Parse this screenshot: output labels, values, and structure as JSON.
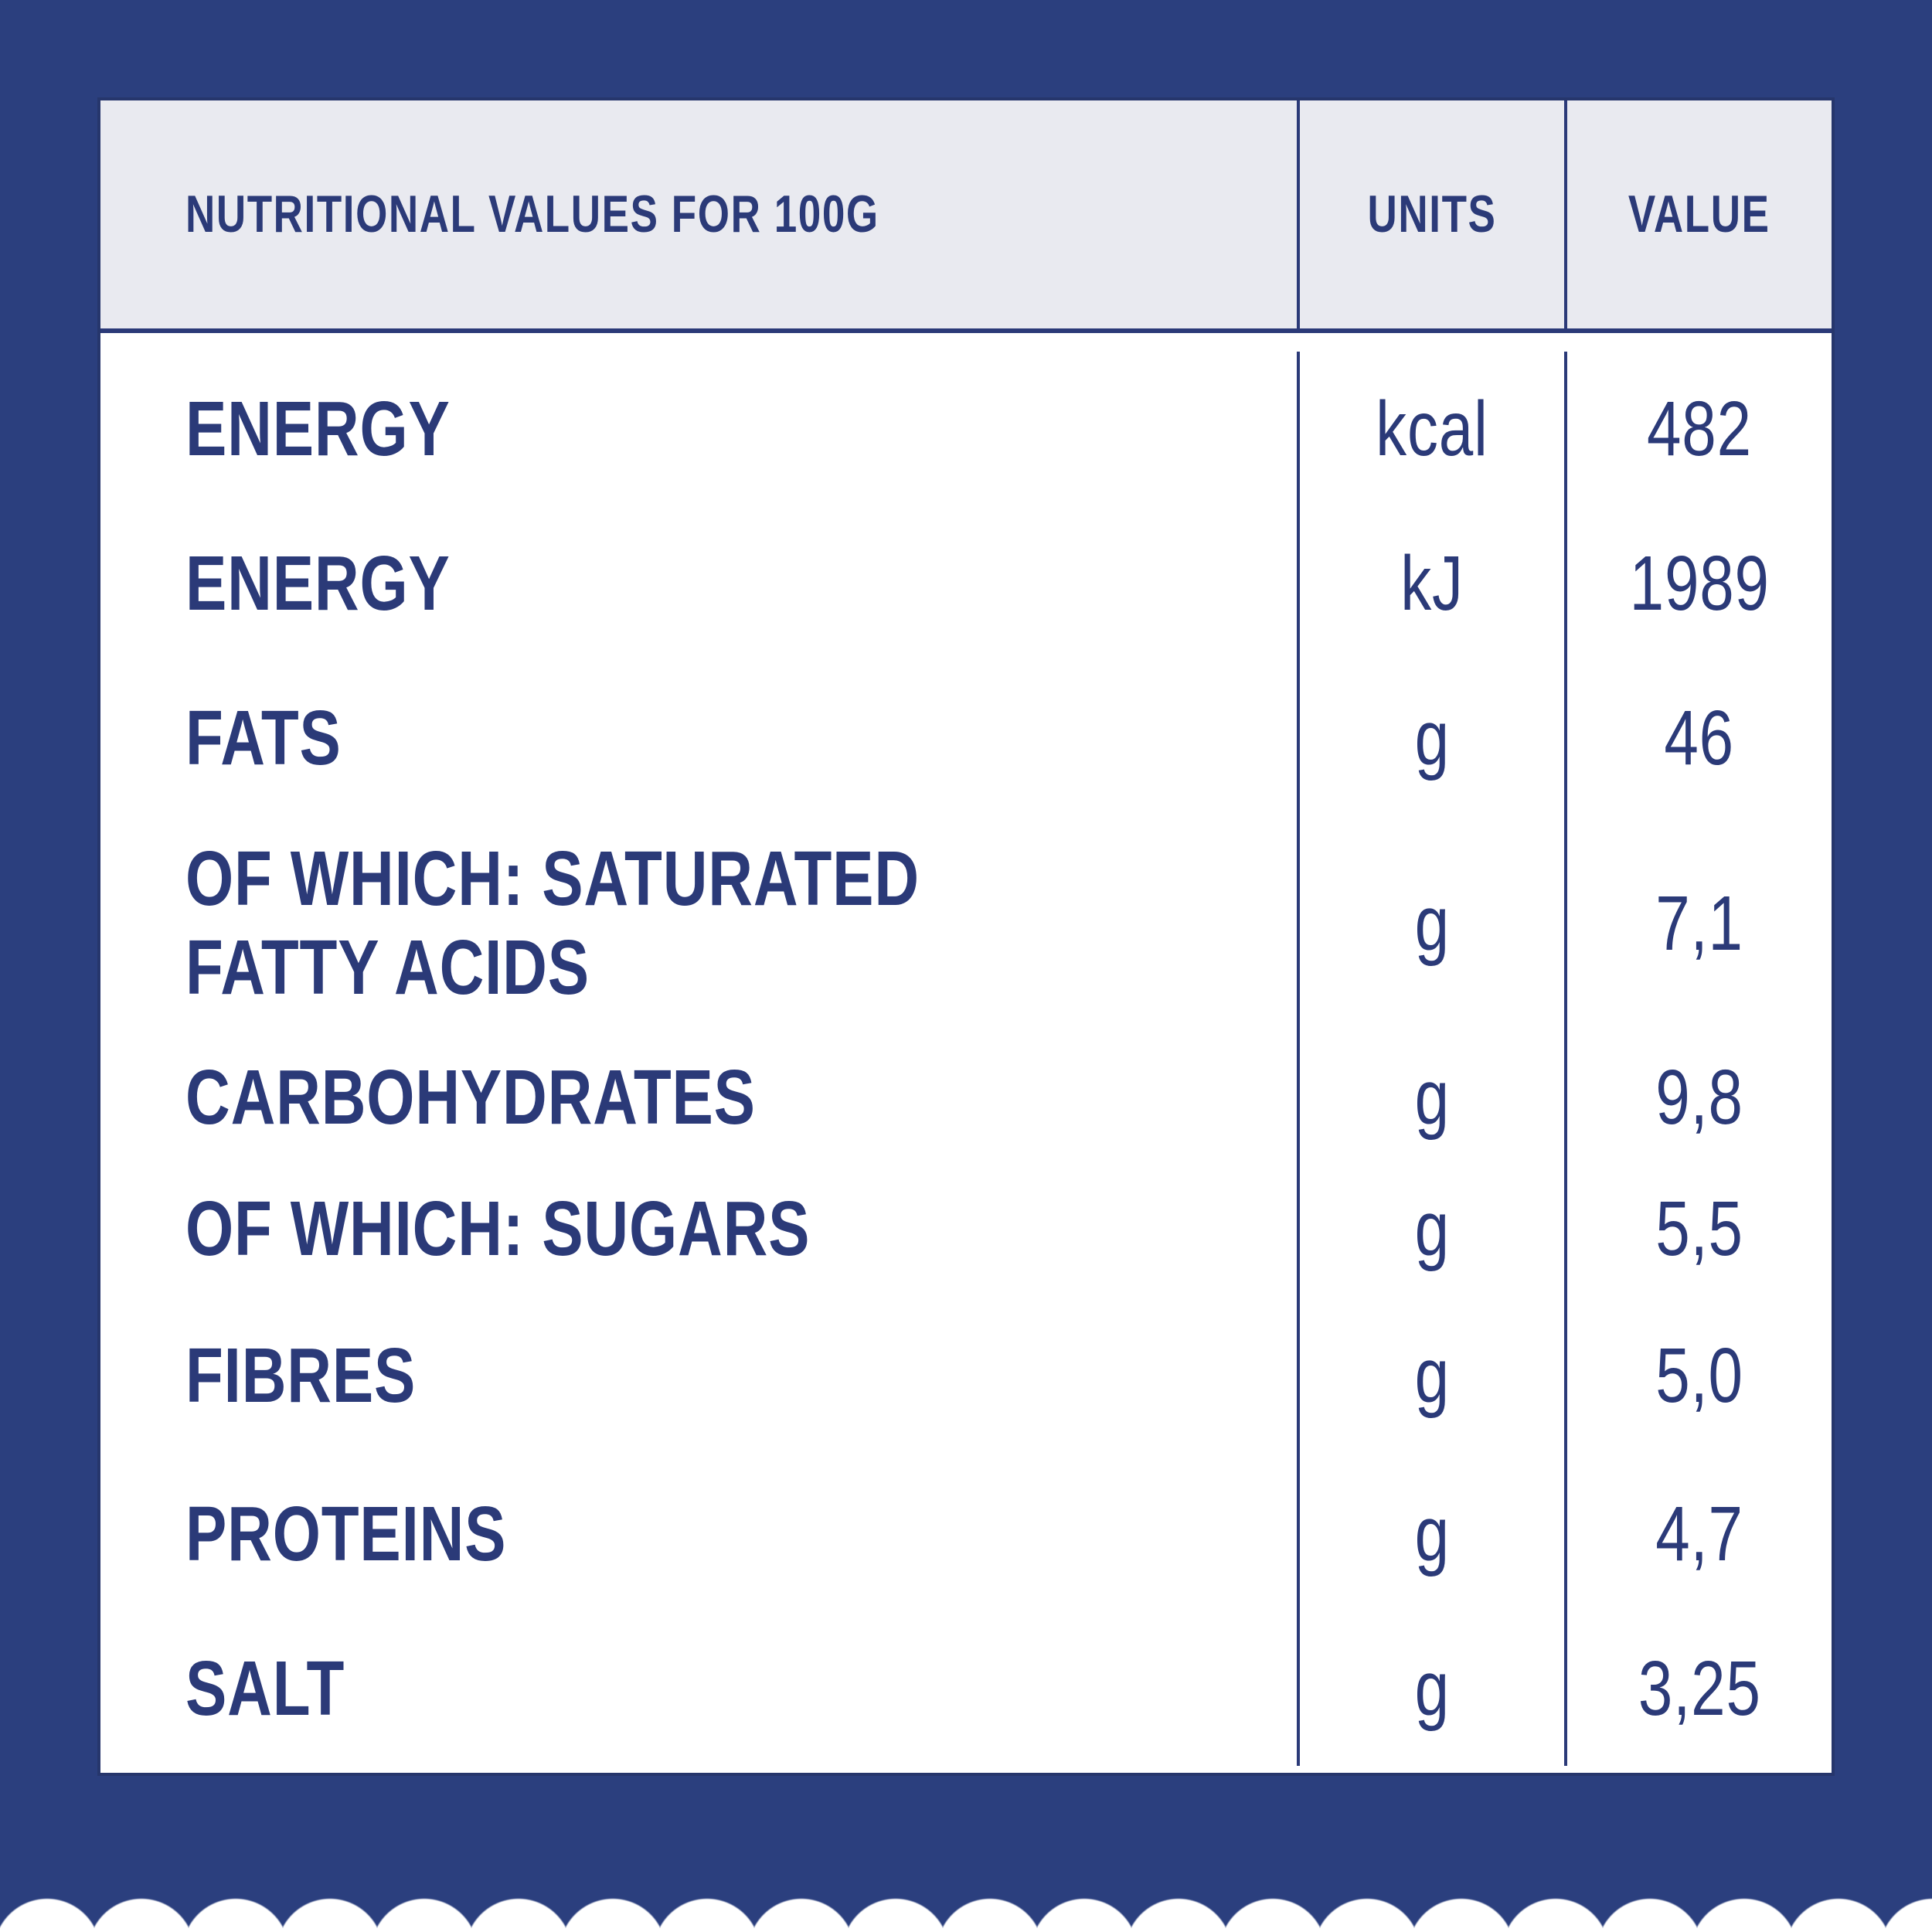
{
  "page": {
    "type": "nutrition-facts-table"
  },
  "colors": {
    "background_blue": "#2B3F7E",
    "text_navy": "#2B3A78",
    "header_background": "#E9EAF0",
    "table_border": "#26366C",
    "card_white": "#FFFFFF"
  },
  "table": {
    "header": {
      "title": "NUTRITIONAL VALUES FOR 100G",
      "units_col": "UNITS",
      "value_col": "VALUE"
    },
    "rows": [
      {
        "label": "ENERGY",
        "unit": "kcal",
        "value": "482"
      },
      {
        "label": "ENERGY",
        "unit": "kJ",
        "value": "1989"
      },
      {
        "label": "FATS",
        "unit": "g",
        "value": "46"
      },
      {
        "label": "OF WHICH: SATURATED FATTY ACIDS",
        "unit": "g",
        "value": "7,1"
      },
      {
        "label": "CARBOHYDRATES",
        "unit": "g",
        "value": "9,8"
      },
      {
        "label": "OF WHICH: SUGARS",
        "unit": "g",
        "value": "5,5"
      },
      {
        "label": "FIBRES",
        "unit": "g",
        "value": "5,0"
      },
      {
        "label": "PROTEINS",
        "unit": "g",
        "value": "4,7"
      },
      {
        "label": "SALT",
        "unit": "g",
        "value": "3,25"
      }
    ]
  }
}
